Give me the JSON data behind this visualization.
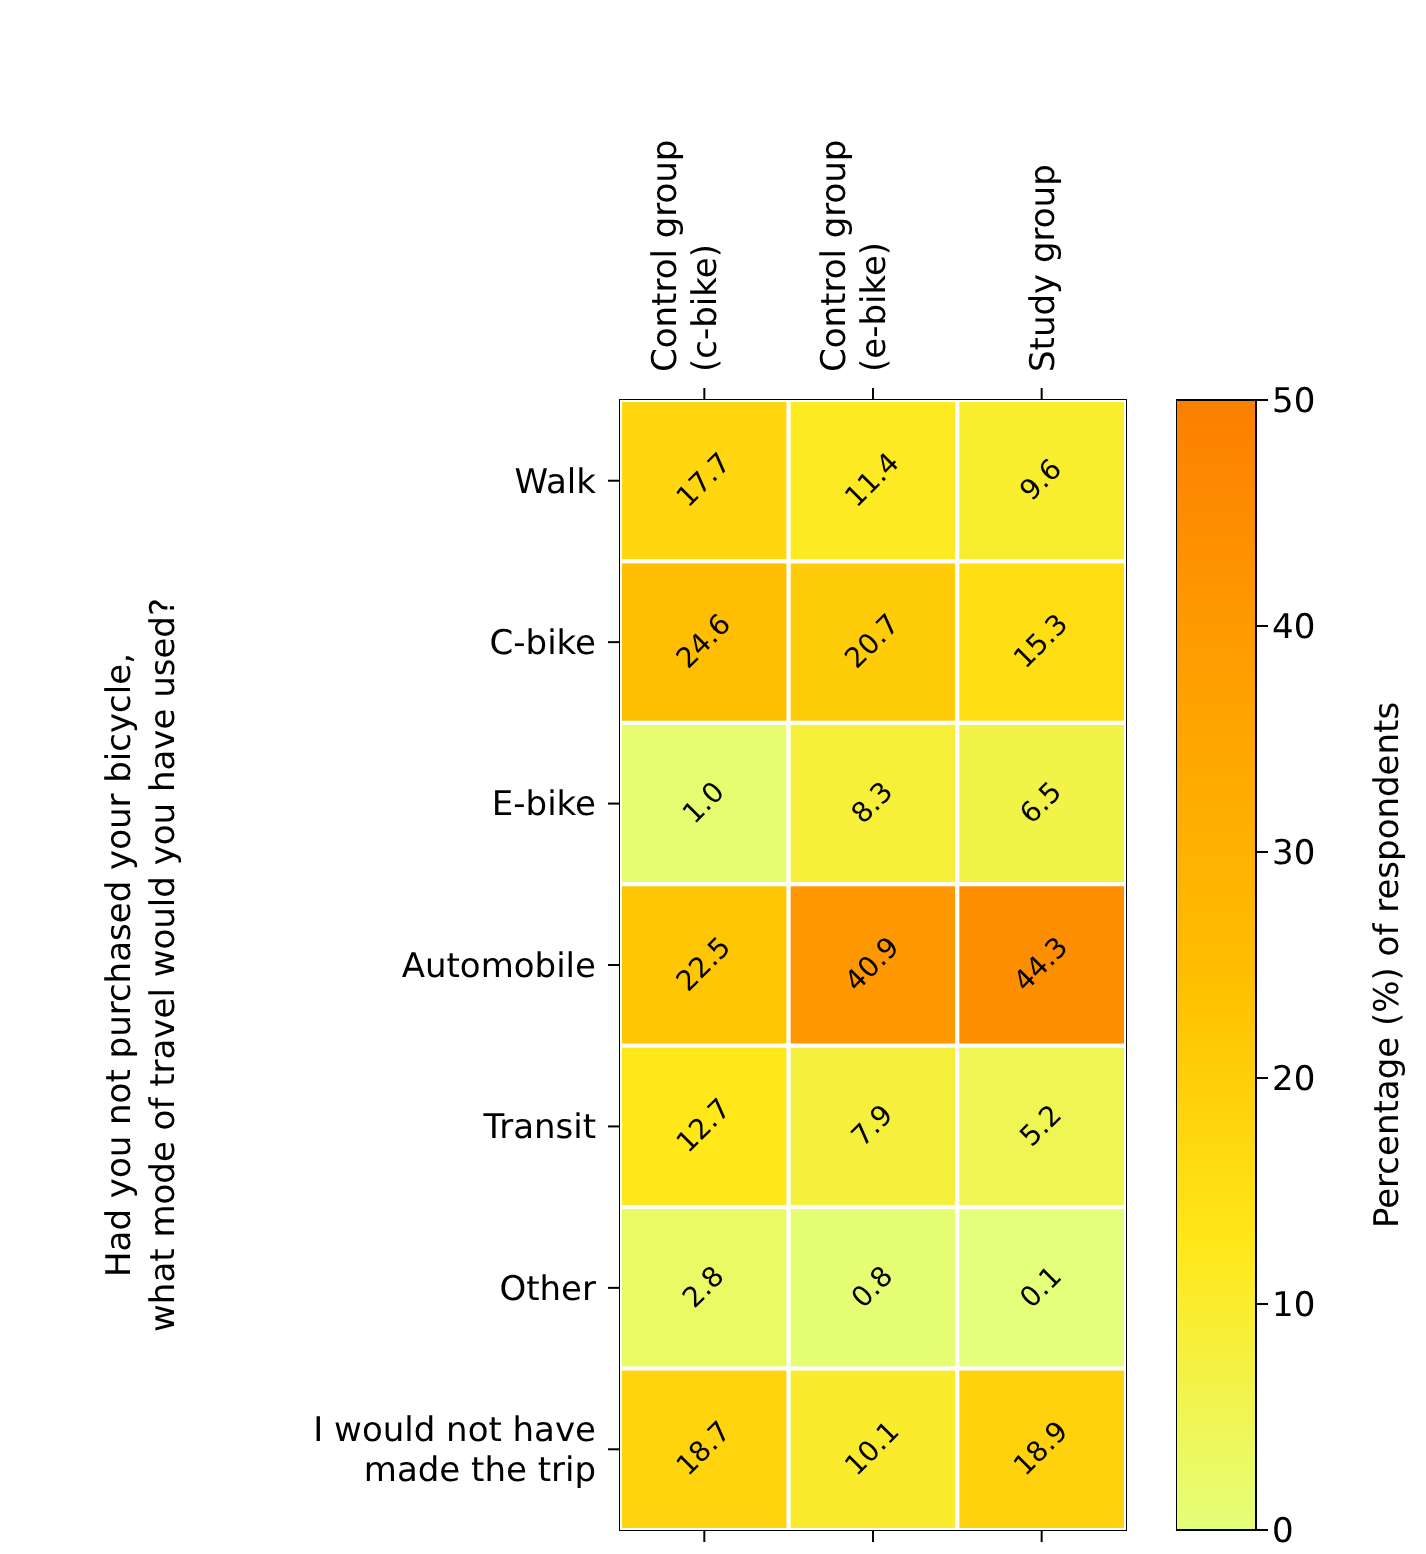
{
  "chart_data": {
    "type": "heatmap",
    "ylabel": "Had you not purchased your bicycle,\nwhat mode of travel would you have used?",
    "clabel": "Percentage (%) of respondents",
    "categories": [
      "Control group\n(c-bike)",
      "Control group\n(e-bike)",
      "Study group"
    ],
    "y_categories": [
      "Walk",
      "C-bike",
      "E-bike",
      "Automobile",
      "Transit",
      "Other",
      "I would not have\nmade the trip"
    ],
    "cells": [
      [
        17.7,
        11.4,
        9.6
      ],
      [
        24.6,
        20.7,
        15.3
      ],
      [
        1.0,
        8.3,
        6.5
      ],
      [
        22.5,
        40.9,
        44.3
      ],
      [
        12.7,
        7.9,
        5.2
      ],
      [
        2.8,
        0.8,
        0.1
      ],
      [
        18.7,
        10.1,
        18.9
      ]
    ],
    "cell_labels": [
      [
        "17.7",
        "11.4",
        "9.6"
      ],
      [
        "24.6",
        "20.7",
        "15.3"
      ],
      [
        "1.0",
        "8.3",
        "6.5"
      ],
      [
        "22.5",
        "40.9",
        "44.3"
      ],
      [
        "12.7",
        "7.9",
        "5.2"
      ],
      [
        "2.8",
        "0.8",
        "0.1"
      ],
      [
        "18.7",
        "10.1",
        "18.9"
      ]
    ],
    "clim": [
      0,
      50
    ],
    "cticks": [
      0,
      10,
      20,
      30,
      40,
      50
    ],
    "colors": [
      "#e4ff7a",
      "#ffe81a",
      "#ffbd00",
      "#ffa000",
      "#fc7f00"
    ]
  }
}
